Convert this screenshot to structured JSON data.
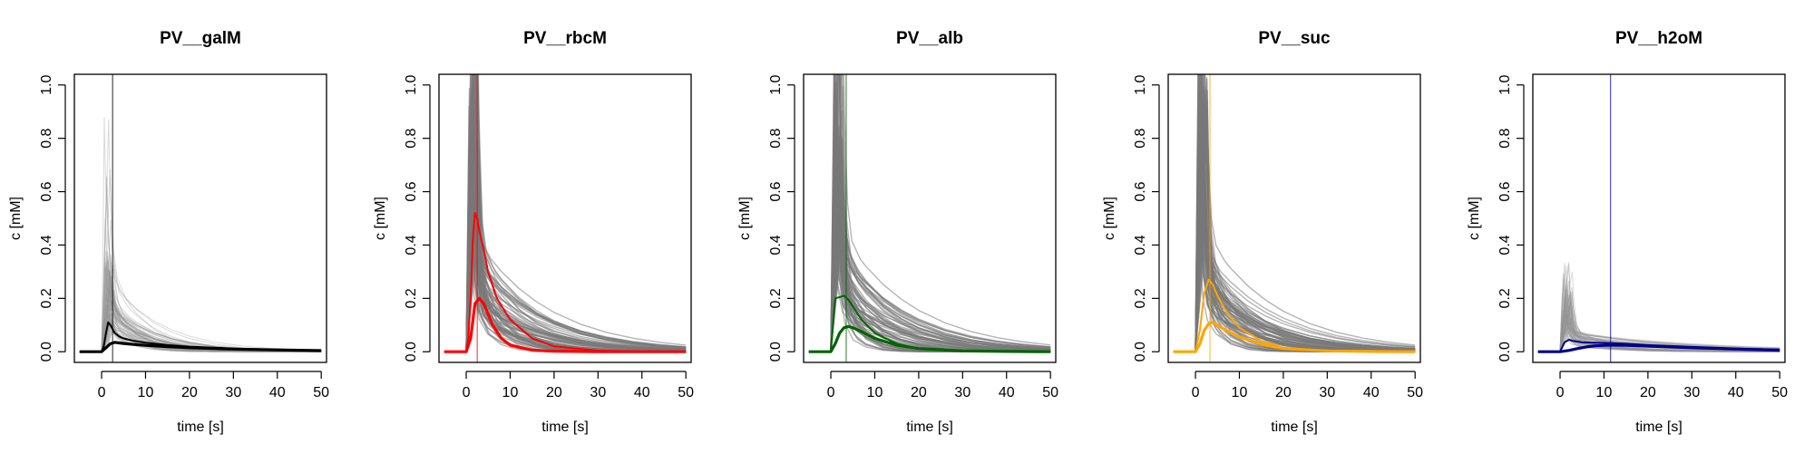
{
  "chart_data": [
    {
      "type": "line",
      "title": "PV__galM",
      "xlabel": "time [s]",
      "ylabel": "c [mM]",
      "xlim": [
        -5,
        50
      ],
      "ylim": [
        0,
        1
      ],
      "xticks": [
        0,
        10,
        20,
        30,
        40,
        50
      ],
      "yticks": [
        0.0,
        0.2,
        0.4,
        0.6,
        0.8,
        1.0
      ],
      "color": "#000000",
      "vline_x": 2.5,
      "background_spike_max": 0.81,
      "series": [
        {
          "x": [
            -5,
            0,
            0.5,
            1,
            1.5,
            2,
            2.5,
            3,
            4,
            5,
            7,
            10,
            15,
            20,
            30,
            40,
            50
          ],
          "y": [
            0,
            0,
            0.02,
            0.07,
            0.11,
            0.1,
            0.085,
            0.07,
            0.057,
            0.05,
            0.042,
            0.034,
            0.025,
            0.019,
            0.012,
            0.008,
            0.005
          ]
        },
        {
          "x": [
            -5,
            0,
            1,
            2,
            3,
            4,
            5,
            7,
            10,
            15,
            20,
            30,
            40,
            50
          ],
          "y": [
            0,
            0,
            0.015,
            0.03,
            0.035,
            0.033,
            0.031,
            0.028,
            0.024,
            0.019,
            0.015,
            0.01,
            0.007,
            0.004
          ]
        }
      ]
    },
    {
      "type": "line",
      "title": "PV__rbcM",
      "xlabel": "time [s]",
      "ylabel": "c [mM]",
      "xlim": [
        -5,
        50
      ],
      "ylim": [
        0,
        1
      ],
      "xticks": [
        0,
        10,
        20,
        30,
        40,
        50
      ],
      "yticks": [
        0.0,
        0.2,
        0.4,
        0.6,
        0.8,
        1.0
      ],
      "color": "#ff0000",
      "vline_x": 2.5,
      "background_spike_max": 1.0,
      "series": [
        {
          "x": [
            -5,
            0,
            0.5,
            1,
            1.5,
            2,
            2.5,
            3,
            4,
            5,
            7,
            10,
            15,
            20,
            30,
            40,
            50
          ],
          "y": [
            0,
            0,
            0.05,
            0.2,
            0.42,
            0.52,
            0.5,
            0.45,
            0.38,
            0.3,
            0.2,
            0.12,
            0.05,
            0.02,
            0.004,
            0.001,
            0
          ]
        },
        {
          "x": [
            -5,
            0,
            1,
            2,
            3,
            4,
            5,
            6,
            8,
            10,
            15,
            20,
            30,
            40,
            50
          ],
          "y": [
            0,
            0,
            0.05,
            0.18,
            0.2,
            0.18,
            0.14,
            0.1,
            0.05,
            0.025,
            0.006,
            0.002,
            0,
            0,
            0
          ]
        }
      ]
    },
    {
      "type": "line",
      "title": "PV__alb",
      "xlabel": "time [s]",
      "ylabel": "c [mM]",
      "xlim": [
        -5,
        50
      ],
      "ylim": [
        0,
        1
      ],
      "xticks": [
        0,
        10,
        20,
        30,
        40,
        50
      ],
      "yticks": [
        0.0,
        0.2,
        0.4,
        0.6,
        0.8,
        1.0
      ],
      "color": "#006400",
      "vline_x": 3.5,
      "background_spike_max": 1.0,
      "series": [
        {
          "x": [
            -5,
            0,
            0.5,
            1,
            2,
            3,
            4,
            5,
            7,
            10,
            15,
            20,
            30,
            40,
            50
          ],
          "y": [
            0,
            0,
            0.1,
            0.2,
            0.205,
            0.21,
            0.195,
            0.17,
            0.12,
            0.07,
            0.03,
            0.012,
            0.003,
            0.001,
            0
          ]
        },
        {
          "x": [
            -5,
            0,
            1,
            2,
            3,
            4,
            5,
            7,
            10,
            15,
            20,
            30,
            40,
            50
          ],
          "y": [
            0,
            0,
            0.03,
            0.07,
            0.09,
            0.095,
            0.09,
            0.075,
            0.05,
            0.025,
            0.012,
            0.003,
            0.001,
            0
          ]
        }
      ]
    },
    {
      "type": "line",
      "title": "PV__suc",
      "xlabel": "time [s]",
      "ylabel": "c [mM]",
      "xlim": [
        -5,
        50
      ],
      "ylim": [
        0,
        1
      ],
      "xticks": [
        0,
        10,
        20,
        30,
        40,
        50
      ],
      "yticks": [
        0.0,
        0.2,
        0.4,
        0.6,
        0.8,
        1.0
      ],
      "color": "#ffa500",
      "vline_x": 3.3,
      "background_spike_max": 1.0,
      "series": [
        {
          "x": [
            -5,
            0,
            1,
            2,
            3,
            4,
            5,
            7,
            10,
            15,
            20,
            30,
            40,
            50
          ],
          "y": [
            0,
            0,
            0.08,
            0.22,
            0.27,
            0.25,
            0.21,
            0.15,
            0.09,
            0.04,
            0.015,
            0.003,
            0.001,
            0
          ]
        },
        {
          "x": [
            -5,
            0,
            1,
            2,
            3,
            4,
            5,
            7,
            10,
            15,
            20,
            30,
            40,
            50
          ],
          "y": [
            0,
            0,
            0.03,
            0.08,
            0.105,
            0.11,
            0.1,
            0.08,
            0.055,
            0.028,
            0.012,
            0.003,
            0.001,
            0
          ]
        }
      ]
    },
    {
      "type": "line",
      "title": "PV__h2oM",
      "xlabel": "time [s]",
      "ylabel": "c [mM]",
      "xlim": [
        -5,
        50
      ],
      "ylim": [
        0,
        1
      ],
      "xticks": [
        0,
        10,
        20,
        30,
        40,
        50
      ],
      "yticks": [
        0.0,
        0.2,
        0.4,
        0.6,
        0.8,
        1.0
      ],
      "color": "#00008b",
      "vline_x": 11.5,
      "background_spike_max": 0.4,
      "series": [
        {
          "x": [
            -5,
            0,
            1,
            2,
            3,
            5,
            10,
            15,
            20,
            30,
            40,
            50
          ],
          "y": [
            0,
            0,
            0.035,
            0.045,
            0.04,
            0.035,
            0.033,
            0.03,
            0.025,
            0.018,
            0.012,
            0.008
          ]
        },
        {
          "x": [
            -5,
            0,
            2,
            4,
            6,
            8,
            10,
            12,
            15,
            20,
            30,
            40,
            50
          ],
          "y": [
            0,
            0,
            0.005,
            0.012,
            0.018,
            0.022,
            0.024,
            0.025,
            0.024,
            0.021,
            0.015,
            0.01,
            0.006
          ]
        }
      ]
    }
  ]
}
